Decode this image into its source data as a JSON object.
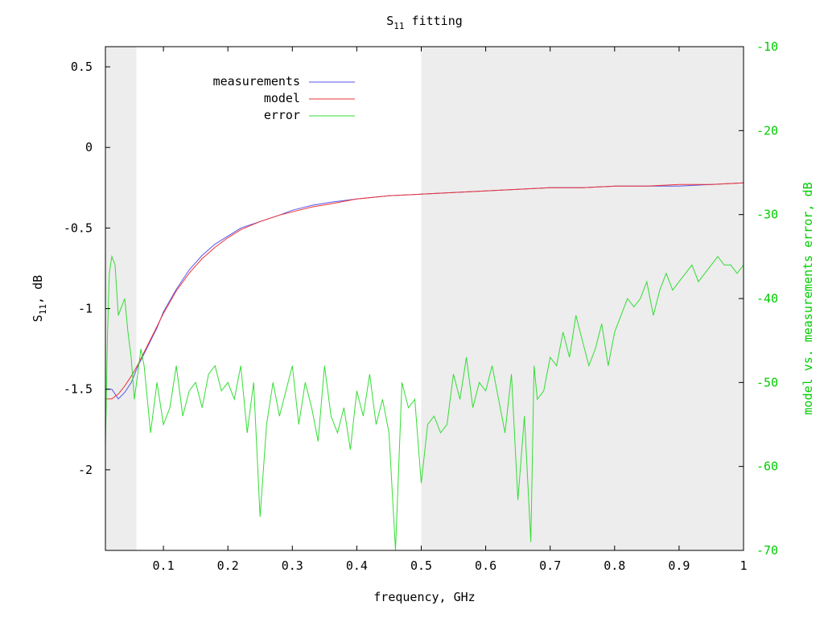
{
  "chart_data": {
    "type": "line",
    "title": "S11 fitting",
    "title_main": "S",
    "title_sub": "11",
    "title_rest": " fitting",
    "xlabel": "frequency, GHz",
    "ylabel_main": "S",
    "ylabel_sub": "11",
    "ylabel_rest": ", dB",
    "y2label": "model vs. measurements error, dB",
    "xlim": [
      0.01,
      1.0
    ],
    "ylim": [
      -2.5,
      0.625
    ],
    "y2lim": [
      -70,
      -10
    ],
    "x_ticks": [
      "0.1",
      "0.2",
      "0.3",
      "0.4",
      "0.5",
      "0.6",
      "0.7",
      "0.8",
      "0.9",
      "1"
    ],
    "y_ticks": [
      "0.5",
      "0",
      "-0.5",
      "-1",
      "-1.5",
      "-2"
    ],
    "y2_ticks": [
      "-10",
      "-20",
      "-30",
      "-40",
      "-50",
      "-60",
      "-70"
    ],
    "grid": false,
    "legend_position": "top-left",
    "shaded_regions": [
      {
        "from": 0.01,
        "to": 0.058
      },
      {
        "from": 0.5,
        "to": 1.0
      }
    ],
    "series": [
      {
        "name": "measurements",
        "axis": "y",
        "color": "#5555ee",
        "x": [
          0.01,
          0.02,
          0.03,
          0.04,
          0.05,
          0.06,
          0.07,
          0.08,
          0.09,
          0.1,
          0.12,
          0.14,
          0.16,
          0.18,
          0.2,
          0.22,
          0.25,
          0.28,
          0.3,
          0.33,
          0.36,
          0.4,
          0.45,
          0.5,
          0.55,
          0.6,
          0.65,
          0.7,
          0.75,
          0.8,
          0.85,
          0.9,
          0.95,
          1.0
        ],
        "y": [
          -1.5,
          -1.5,
          -1.56,
          -1.52,
          -1.46,
          -1.36,
          -1.28,
          -1.2,
          -1.12,
          -1.02,
          -0.88,
          -0.76,
          -0.67,
          -0.6,
          -0.55,
          -0.5,
          -0.46,
          -0.42,
          -0.39,
          -0.36,
          -0.34,
          -0.32,
          -0.3,
          -0.29,
          -0.28,
          -0.27,
          -0.26,
          -0.25,
          -0.25,
          -0.24,
          -0.24,
          -0.24,
          -0.23,
          -0.22
        ]
      },
      {
        "name": "model",
        "axis": "y",
        "color": "#ee3333",
        "x": [
          0.01,
          0.02,
          0.03,
          0.04,
          0.05,
          0.06,
          0.07,
          0.08,
          0.09,
          0.1,
          0.12,
          0.14,
          0.16,
          0.18,
          0.2,
          0.22,
          0.25,
          0.28,
          0.3,
          0.33,
          0.36,
          0.4,
          0.45,
          0.5,
          0.55,
          0.6,
          0.65,
          0.7,
          0.75,
          0.8,
          0.85,
          0.9,
          0.95,
          1.0
        ],
        "y": [
          -1.56,
          -1.56,
          -1.53,
          -1.48,
          -1.42,
          -1.35,
          -1.27,
          -1.19,
          -1.11,
          -1.03,
          -0.89,
          -0.78,
          -0.69,
          -0.62,
          -0.56,
          -0.51,
          -0.46,
          -0.42,
          -0.4,
          -0.37,
          -0.35,
          -0.32,
          -0.3,
          -0.29,
          -0.28,
          -0.27,
          -0.26,
          -0.25,
          -0.25,
          -0.24,
          -0.24,
          -0.23,
          -0.23,
          -0.22
        ]
      },
      {
        "name": "error",
        "axis": "y2",
        "color": "#33dd33",
        "x": [
          0.01,
          0.013,
          0.016,
          0.02,
          0.025,
          0.03,
          0.035,
          0.04,
          0.045,
          0.05,
          0.055,
          0.06,
          0.065,
          0.07,
          0.08,
          0.09,
          0.1,
          0.11,
          0.12,
          0.13,
          0.14,
          0.15,
          0.16,
          0.17,
          0.18,
          0.19,
          0.2,
          0.21,
          0.22,
          0.23,
          0.24,
          0.25,
          0.26,
          0.27,
          0.28,
          0.29,
          0.3,
          0.31,
          0.32,
          0.33,
          0.34,
          0.35,
          0.36,
          0.37,
          0.38,
          0.39,
          0.4,
          0.41,
          0.42,
          0.43,
          0.44,
          0.45,
          0.46,
          0.47,
          0.48,
          0.49,
          0.5,
          0.51,
          0.52,
          0.53,
          0.54,
          0.55,
          0.56,
          0.57,
          0.58,
          0.59,
          0.6,
          0.61,
          0.62,
          0.63,
          0.64,
          0.65,
          0.66,
          0.67,
          0.675,
          0.68,
          0.69,
          0.7,
          0.71,
          0.72,
          0.73,
          0.74,
          0.75,
          0.76,
          0.77,
          0.78,
          0.79,
          0.8,
          0.81,
          0.82,
          0.83,
          0.84,
          0.85,
          0.86,
          0.87,
          0.88,
          0.89,
          0.9,
          0.91,
          0.92,
          0.93,
          0.94,
          0.95,
          0.96,
          0.97,
          0.98,
          0.99,
          1.0
        ],
        "y": [
          -58,
          -45,
          -37,
          -35,
          -36,
          -42,
          -41,
          -40,
          -44,
          -47,
          -52,
          -49,
          -46,
          -48,
          -56,
          -50,
          -55,
          -53,
          -48,
          -54,
          -51,
          -50,
          -53,
          -49,
          -48,
          -51,
          -50,
          -52,
          -48,
          -56,
          -50,
          -66,
          -55,
          -50,
          -54,
          -51,
          -48,
          -55,
          -50,
          -53,
          -57,
          -48,
          -54,
          -56,
          -53,
          -58,
          -51,
          -54,
          -49,
          -55,
          -52,
          -56,
          -70,
          -50,
          -53,
          -52,
          -62,
          -55,
          -54,
          -56,
          -55,
          -49,
          -52,
          -47,
          -53,
          -50,
          -51,
          -48,
          -52,
          -56,
          -49,
          -64,
          -54,
          -69,
          -48,
          -52,
          -51,
          -47,
          -48,
          -44,
          -47,
          -42,
          -45,
          -48,
          -46,
          -43,
          -48,
          -44,
          -42,
          -40,
          -41,
          -40,
          -38,
          -42,
          -39,
          -37,
          -39,
          -38,
          -37,
          -36,
          -38,
          -37,
          -36,
          -35,
          -36,
          -36,
          -37,
          -36
        ]
      }
    ]
  }
}
